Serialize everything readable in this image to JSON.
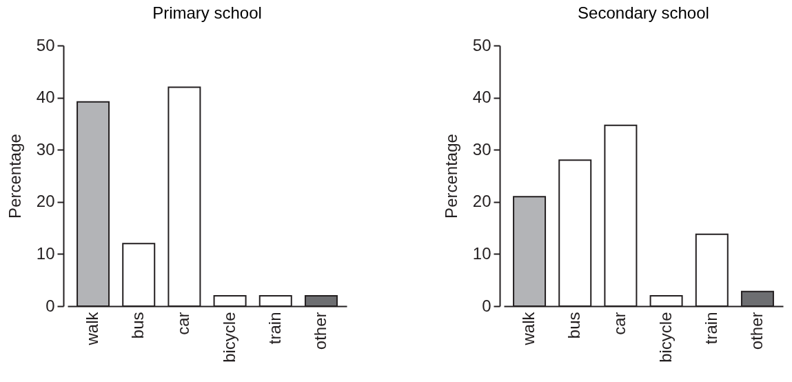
{
  "chart_data": [
    {
      "type": "bar",
      "title": "Primary school",
      "ylabel": "Percentage",
      "categories": [
        "walk",
        "bus",
        "car",
        "bicycle",
        "train",
        "other"
      ],
      "values": [
        39.2,
        12,
        42,
        2,
        2,
        2
      ],
      "colors": [
        "#b3b4b7",
        "#ffffff",
        "#ffffff",
        "#ffffff",
        "#ffffff",
        "#6d6e71"
      ],
      "ylim": [
        0,
        50
      ],
      "yticks": [
        0,
        10,
        20,
        30,
        40,
        50
      ]
    },
    {
      "type": "bar",
      "title": "Secondary school",
      "ylabel": "Percentage",
      "categories": [
        "walk",
        "bus",
        "car",
        "bicycle",
        "train",
        "other"
      ],
      "values": [
        21,
        28,
        34.7,
        2,
        13.8,
        2.8
      ],
      "colors": [
        "#b3b4b7",
        "#ffffff",
        "#ffffff",
        "#ffffff",
        "#ffffff",
        "#6d6e71"
      ],
      "ylim": [
        0,
        50
      ],
      "yticks": [
        0,
        10,
        20,
        30,
        40,
        50
      ]
    }
  ]
}
